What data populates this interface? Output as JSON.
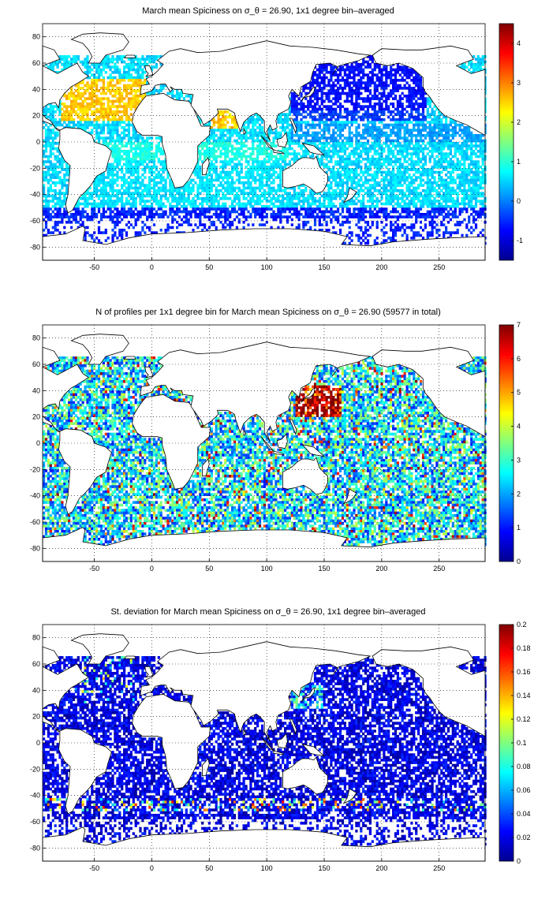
{
  "panels": [
    {
      "title": "March mean Spiciness on σ_θ = 26.90, 1x1 degree bin–averaged",
      "xticks": [
        -50,
        0,
        50,
        100,
        150,
        200,
        250
      ],
      "yticks": [
        80,
        60,
        40,
        20,
        0,
        -20,
        -40,
        -60,
        -80
      ],
      "colorbar": {
        "min": -1.5,
        "max": 4.5,
        "ticks": [
          "4",
          "3",
          "2",
          "1",
          "0",
          "-1"
        ],
        "tickvals": [
          4,
          3,
          2,
          1,
          0,
          -1
        ]
      }
    },
    {
      "title": "N of profiles per 1x1 degree bin for March mean Spiciness on σ_θ = 26.90 (59577 in total)",
      "xticks": [
        -50,
        0,
        50,
        100,
        150,
        200,
        250
      ],
      "yticks": [
        80,
        60,
        40,
        20,
        0,
        -20,
        -40,
        -60,
        -80
      ],
      "colorbar": {
        "min": 0,
        "max": 7,
        "ticks": [
          "7",
          "6",
          "5",
          "4",
          "3",
          "2",
          "1",
          "0"
        ],
        "tickvals": [
          7,
          6,
          5,
          4,
          3,
          2,
          1,
          0
        ]
      }
    },
    {
      "title": "St. deviation for March mean Spiciness on σ_θ = 26.90, 1x1 degree bin–averaged",
      "xticks": [
        -50,
        0,
        50,
        100,
        150,
        200,
        250
      ],
      "yticks": [
        80,
        60,
        40,
        20,
        0,
        -20,
        -40,
        -60,
        -80
      ],
      "colorbar": {
        "min": 0,
        "max": 0.2,
        "ticks": [
          "0.2",
          "0.18",
          "0.16",
          "0.14",
          "0.12",
          "0.1",
          "0.08",
          "0.06",
          "0.04",
          "0.02",
          "0"
        ],
        "tickvals": [
          0.2,
          0.18,
          0.16,
          0.14,
          0.12,
          0.1,
          0.08,
          0.06,
          0.04,
          0.02,
          0
        ]
      }
    }
  ],
  "map": {
    "lon_range": [
      -95,
      290
    ],
    "lat_range": [
      -90,
      90
    ]
  }
}
